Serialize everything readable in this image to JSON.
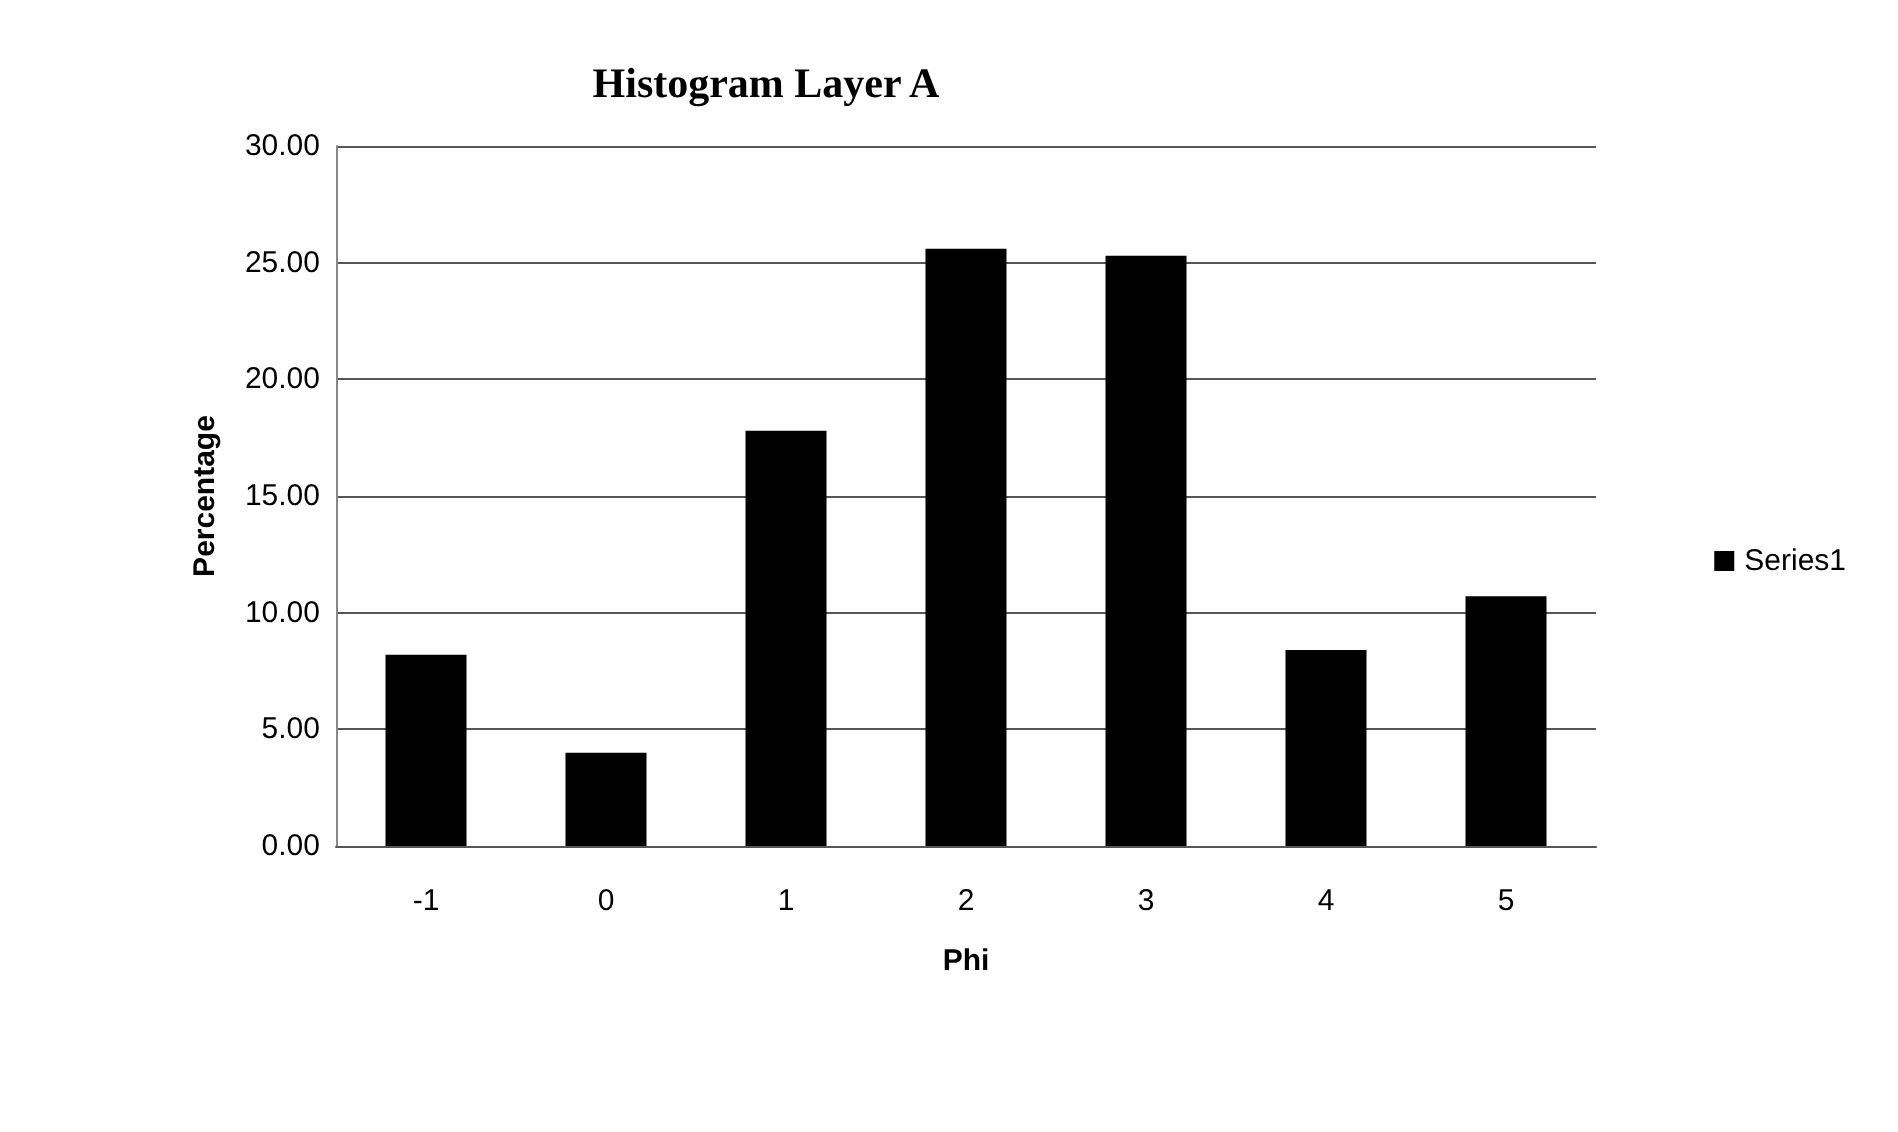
{
  "chart_data": {
    "type": "bar",
    "title": "Histogram Layer A",
    "xlabel": "Phi",
    "ylabel": "Percentage",
    "categories": [
      "-1",
      "0",
      "1",
      "2",
      "3",
      "4",
      "5"
    ],
    "series": [
      {
        "name": "Series1",
        "color": "#000000",
        "values": [
          8.2,
          4.0,
          17.8,
          25.6,
          25.3,
          8.4,
          10.7
        ]
      }
    ],
    "ylim": [
      0,
      30
    ],
    "yticks": [
      {
        "value": 0,
        "label": "0.00"
      },
      {
        "value": 5,
        "label": "5.00"
      },
      {
        "value": 10,
        "label": "10.00"
      },
      {
        "value": 15,
        "label": "15.00"
      },
      {
        "value": 20,
        "label": "20.00"
      },
      {
        "value": 25,
        "label": "25.00"
      },
      {
        "value": 30,
        "label": "30.00"
      }
    ],
    "grid": "y",
    "legend": "right"
  }
}
